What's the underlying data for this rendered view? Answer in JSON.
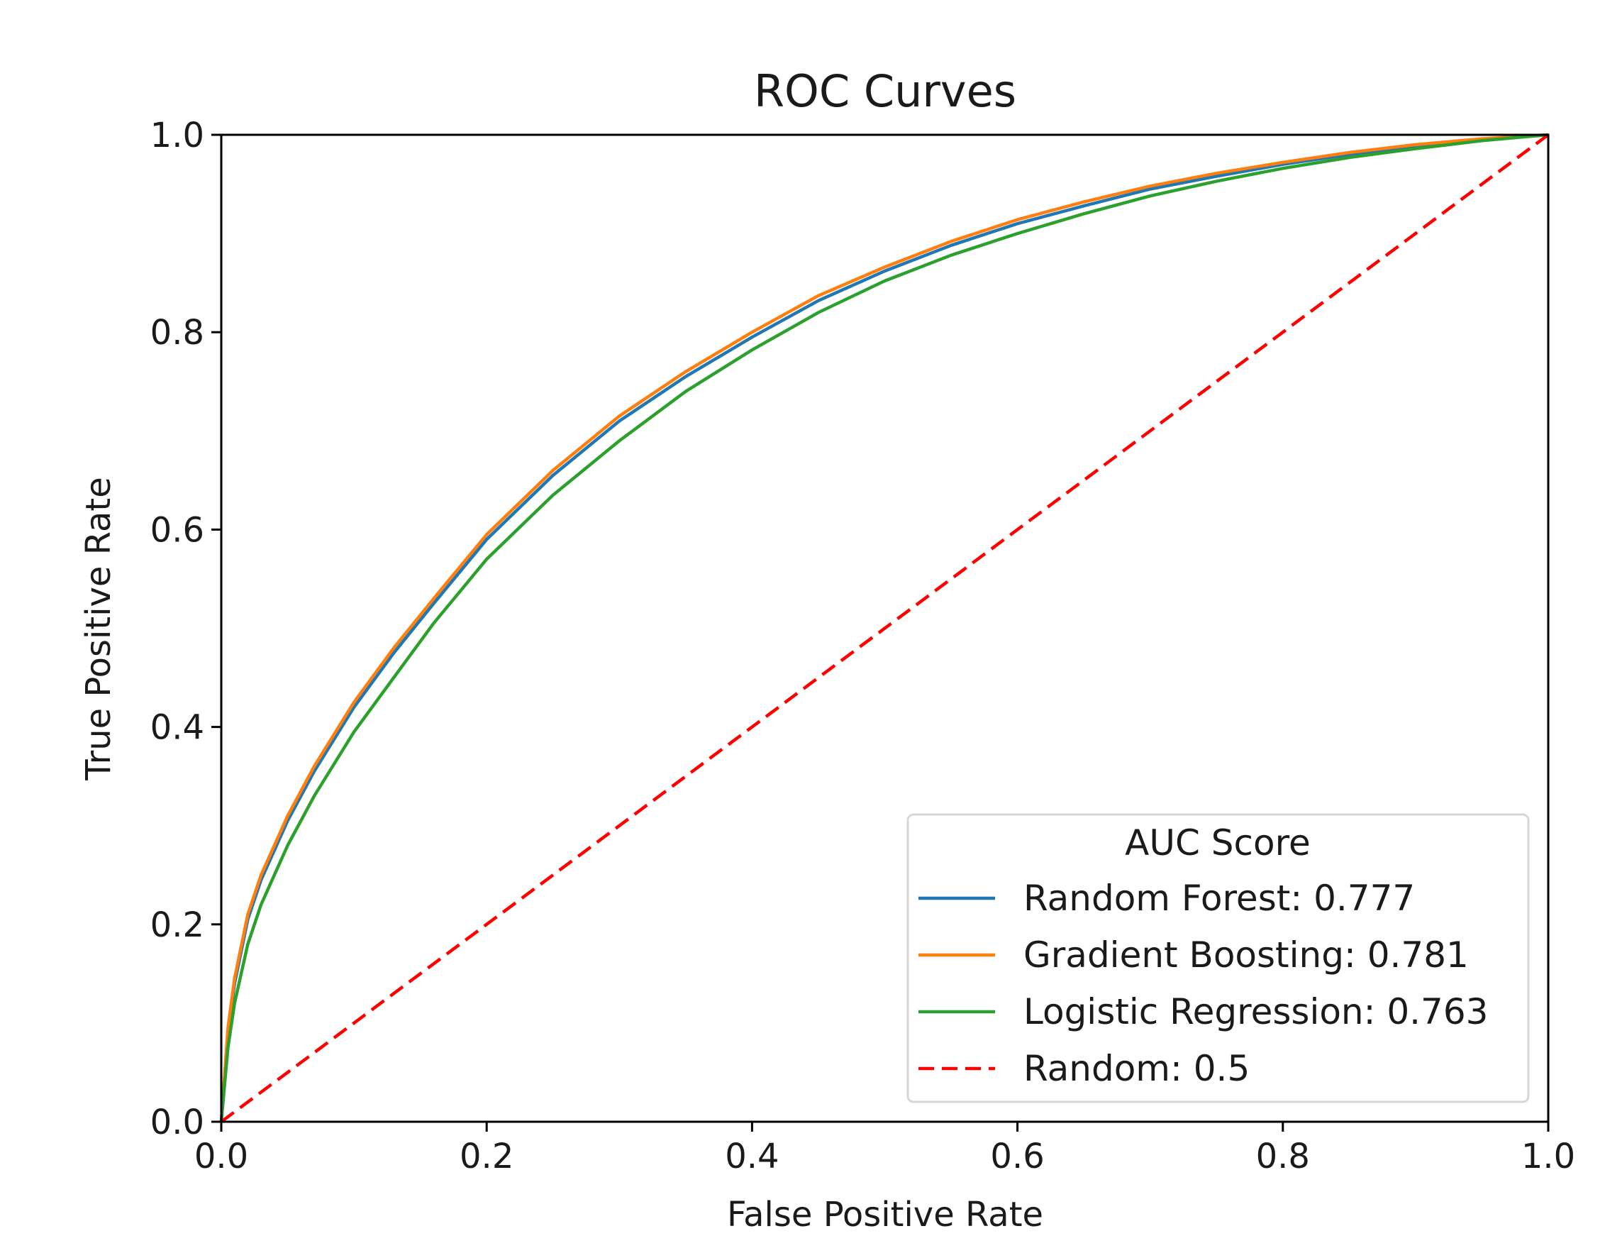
{
  "chart_data": {
    "type": "line",
    "title": "ROC Curves",
    "xlabel": "False Positive Rate",
    "ylabel": "True Positive Rate",
    "xlim": [
      0.0,
      1.0
    ],
    "ylim": [
      0.0,
      1.0
    ],
    "xticks": [
      "0.0",
      "0.2",
      "0.4",
      "0.6",
      "0.8",
      "1.0"
    ],
    "yticks": [
      "0.0",
      "0.2",
      "0.4",
      "0.6",
      "0.8",
      "1.0"
    ],
    "grid": false,
    "legend": {
      "title": "AUC Score",
      "location": "lower-right"
    },
    "series": [
      {
        "name": "Random Forest: 0.777",
        "color": "#1f77b4",
        "style": "solid",
        "x": [
          0.0,
          0.005,
          0.01,
          0.02,
          0.03,
          0.05,
          0.07,
          0.1,
          0.13,
          0.16,
          0.2,
          0.25,
          0.3,
          0.35,
          0.4,
          0.45,
          0.5,
          0.55,
          0.6,
          0.65,
          0.7,
          0.75,
          0.8,
          0.85,
          0.9,
          0.95,
          1.0
        ],
        "y": [
          0.0,
          0.09,
          0.14,
          0.205,
          0.245,
          0.305,
          0.355,
          0.42,
          0.475,
          0.525,
          0.59,
          0.655,
          0.71,
          0.755,
          0.795,
          0.832,
          0.862,
          0.888,
          0.91,
          0.928,
          0.945,
          0.958,
          0.97,
          0.98,
          0.988,
          0.995,
          1.0
        ]
      },
      {
        "name": "Gradient Boosting: 0.781",
        "color": "#ff7f0e",
        "style": "solid",
        "x": [
          0.0,
          0.005,
          0.01,
          0.02,
          0.03,
          0.05,
          0.07,
          0.1,
          0.13,
          0.16,
          0.2,
          0.25,
          0.3,
          0.35,
          0.4,
          0.45,
          0.5,
          0.55,
          0.6,
          0.65,
          0.7,
          0.75,
          0.8,
          0.85,
          0.9,
          0.95,
          1.0
        ],
        "y": [
          0.0,
          0.095,
          0.145,
          0.21,
          0.25,
          0.31,
          0.36,
          0.425,
          0.48,
          0.53,
          0.595,
          0.66,
          0.715,
          0.76,
          0.8,
          0.837,
          0.866,
          0.892,
          0.914,
          0.932,
          0.948,
          0.961,
          0.972,
          0.982,
          0.99,
          0.996,
          1.0
        ]
      },
      {
        "name": "Logistic Regression: 0.763",
        "color": "#2ca02c",
        "style": "solid",
        "x": [
          0.0,
          0.005,
          0.01,
          0.02,
          0.03,
          0.05,
          0.07,
          0.1,
          0.13,
          0.16,
          0.2,
          0.25,
          0.3,
          0.35,
          0.4,
          0.45,
          0.5,
          0.55,
          0.6,
          0.65,
          0.7,
          0.75,
          0.8,
          0.85,
          0.9,
          0.95,
          1.0
        ],
        "y": [
          0.0,
          0.075,
          0.12,
          0.18,
          0.22,
          0.28,
          0.33,
          0.395,
          0.45,
          0.505,
          0.57,
          0.635,
          0.69,
          0.74,
          0.782,
          0.82,
          0.852,
          0.878,
          0.9,
          0.92,
          0.938,
          0.953,
          0.966,
          0.977,
          0.986,
          0.994,
          1.0
        ]
      },
      {
        "name": "Random: 0.5",
        "color": "#ff0000",
        "style": "dashed",
        "x": [
          0.0,
          1.0
        ],
        "y": [
          0.0,
          1.0
        ]
      }
    ]
  }
}
